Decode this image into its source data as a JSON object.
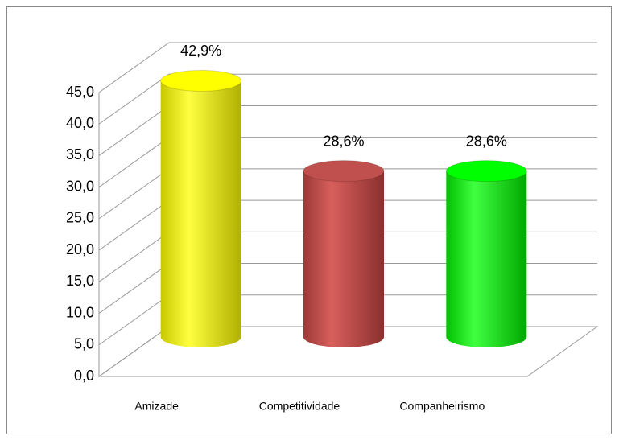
{
  "chart_data": {
    "type": "bar",
    "categories": [
      "Amizade",
      "Competitividade",
      "Companheirismo"
    ],
    "values": [
      42.9,
      28.6,
      28.6
    ],
    "value_labels": [
      "42,9%",
      "28,6%",
      "28,6%"
    ],
    "colors": [
      "#ffff00",
      "#c0504d",
      "#00ff00"
    ],
    "ylim": [
      0,
      45
    ],
    "yticks": [
      {
        "value": 0,
        "label": "0,0"
      },
      {
        "value": 5,
        "label": "5,0"
      },
      {
        "value": 10,
        "label": "10,0"
      },
      {
        "value": 15,
        "label": "15,0"
      },
      {
        "value": 20,
        "label": "20,0"
      },
      {
        "value": 25,
        "label": "25,0"
      },
      {
        "value": 30,
        "label": "30,0"
      },
      {
        "value": 35,
        "label": "35,0"
      },
      {
        "value": 40,
        "label": "40,0"
      },
      {
        "value": 45,
        "label": "45,0"
      }
    ],
    "grid": true,
    "three_d": true
  }
}
